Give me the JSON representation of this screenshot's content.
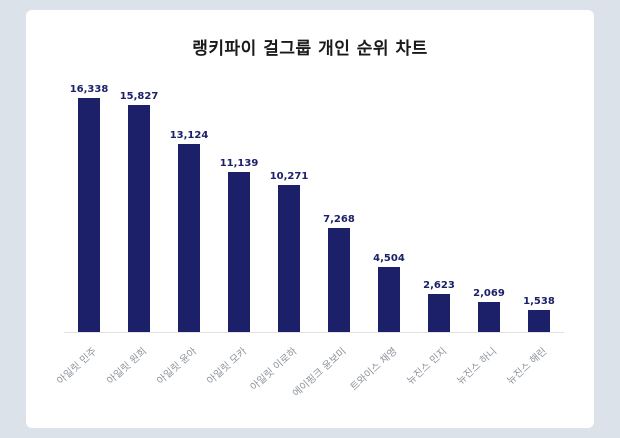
{
  "page": {
    "background_color": "#dbe2e9",
    "card_background_color": "#ffffff"
  },
  "chart_data": {
    "type": "bar",
    "title": "랭키파이 걸그룹 개인 순위 차트",
    "categories": [
      "아일릿 민주",
      "아일릿 원희",
      "아일릿 윤아",
      "아일릿 모카",
      "아일릿 이로하",
      "에이핑크 윤보미",
      "트와이스 채영",
      "뉴진스 민지",
      "뉴진스 하니",
      "뉴진스 해린"
    ],
    "values": [
      16338,
      15827,
      13124,
      11139,
      10271,
      7268,
      4504,
      2623,
      2069,
      1538
    ],
    "value_labels": [
      "16,338",
      "15,827",
      "13,124",
      "11,139",
      "10,271",
      "7,268",
      "4,504",
      "2,623",
      "2,069",
      "1,538"
    ],
    "xlabel": "",
    "ylabel": "",
    "ylim": [
      0,
      16338
    ],
    "grid": false,
    "legend": false,
    "bar_color": "#1b2068",
    "value_label_color": "#1b2068",
    "category_label_color": "#8c929c"
  }
}
